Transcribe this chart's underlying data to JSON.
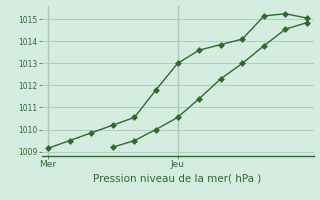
{
  "xlabel": "Pression niveau de la mer( hPa )",
  "background_color": "#d4ede0",
  "plot_bg_color": "#d4ede0",
  "grid_color": "#b0ccbc",
  "line_color": "#2d6b2d",
  "spine_color": "#2d6b2d",
  "tick_color": "#2d6b2d",
  "ylim": [
    1008.8,
    1015.6
  ],
  "yticks": [
    1009,
    1010,
    1011,
    1012,
    1013,
    1014,
    1015
  ],
  "ytick_fontsize": 5.5,
  "xtick_fontsize": 6.5,
  "xlabel_fontsize": 7.5,
  "line1_x": [
    0.0,
    0.167,
    0.333,
    0.5,
    0.667,
    0.833,
    1.0,
    1.167,
    1.333,
    1.5,
    1.667,
    1.833,
    2.0
  ],
  "line1_y": [
    1009.15,
    1009.5,
    1009.85,
    1010.2,
    1010.55,
    1011.8,
    1013.0,
    1013.6,
    1013.85,
    1014.1,
    1015.15,
    1015.25,
    1015.05
  ],
  "line2_x": [
    0.5,
    0.667,
    0.833,
    1.0,
    1.167,
    1.333,
    1.5,
    1.667,
    1.833,
    2.0
  ],
  "line2_y": [
    1009.2,
    1009.5,
    1010.0,
    1010.55,
    1011.4,
    1012.3,
    1013.0,
    1013.8,
    1014.55,
    1014.85
  ],
  "vline_positions": [
    0.0,
    1.0
  ],
  "x_tick_positions": [
    0.0,
    1.0
  ],
  "x_tick_labels": [
    "Mer",
    "Jeu"
  ],
  "xlim": [
    -0.05,
    2.05
  ],
  "marker": "D",
  "marker_size": 3.0,
  "line_width": 1.0
}
